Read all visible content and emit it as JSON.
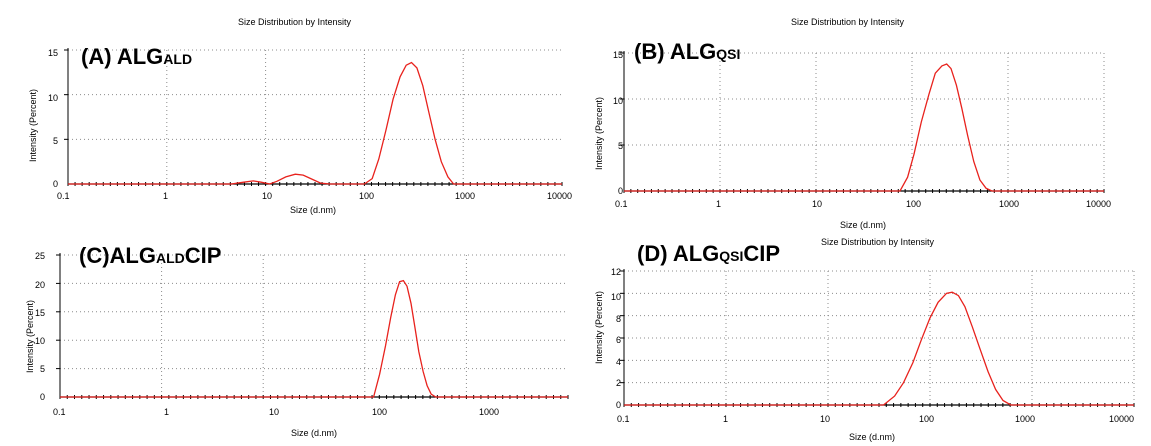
{
  "colors": {
    "curve": "#e8221d",
    "axis": "#000000",
    "grid": "#8c8c8c",
    "marker": "#000000"
  },
  "chart_data": [
    {
      "id": "A",
      "type": "line",
      "panel_label_main": "(A) ALG",
      "panel_label_sub": "ALD",
      "title": "Size Distribution by Intensity",
      "xlabel": "Size (d.nm)",
      "ylabel": "Intensity (Percent)",
      "xscale": "log",
      "xlim": [
        0.1,
        10000
      ],
      "ylim": [
        0,
        15
      ],
      "xticks": [
        "0.1",
        "1",
        "10",
        "100",
        "1000",
        "10000"
      ],
      "yticks": [
        "0",
        "5",
        "10",
        "15"
      ],
      "grid": true,
      "series": [
        {
          "x": [
            4.5,
            6.0,
            7.5,
            9.0,
            11.0,
            13.0,
            16.0,
            20.0,
            24.0,
            30.0,
            36.0,
            45.0,
            100.0,
            120.0,
            140.0,
            165.0,
            195.0,
            230.0,
            265.0,
            300.0,
            340.0,
            390.0,
            450.0,
            520.0,
            600.0,
            700.0,
            800.0
          ],
          "y": [
            0,
            0.2,
            0.35,
            0.2,
            0,
            0.3,
            0.8,
            1.1,
            1.0,
            0.5,
            0.1,
            0,
            0,
            0.6,
            2.8,
            6.0,
            9.5,
            12.0,
            13.3,
            13.6,
            13.0,
            11.0,
            8.0,
            5.0,
            2.5,
            0.8,
            0
          ]
        }
      ]
    },
    {
      "id": "B",
      "type": "line",
      "panel_label_main": "(B) ALG",
      "panel_label_sub": "QSI",
      "title": "Size Distribution by Intensity",
      "xlabel": "Size (d.nm)",
      "ylabel": "Intensity (Percent)",
      "xscale": "log",
      "xlim": [
        0.1,
        10000
      ],
      "ylim": [
        0,
        15
      ],
      "xticks": [
        "0.1",
        "1",
        "10",
        "100",
        "1000",
        "10000"
      ],
      "yticks": [
        "0",
        "5",
        "10",
        "15"
      ],
      "grid": true,
      "series": [
        {
          "x": [
            75,
            90,
            105,
            125,
            150,
            175,
            205,
            230,
            255,
            290,
            330,
            380,
            440,
            510,
            590,
            680
          ],
          "y": [
            0,
            1.5,
            4.0,
            7.5,
            10.5,
            12.8,
            13.6,
            13.8,
            13.3,
            11.5,
            9.0,
            6.0,
            3.2,
            1.2,
            0.3,
            0
          ]
        }
      ]
    },
    {
      "id": "C",
      "type": "line",
      "panel_label_main": "(C)ALG",
      "panel_label_sub": "ALD",
      "panel_label_tail": "CIP",
      "title": "",
      "xlabel": "Size (d.nm)",
      "ylabel": "Intensity (Percent)",
      "xscale": "log",
      "xlim": [
        0.1,
        10000
      ],
      "ylim": [
        0,
        25
      ],
      "xticks": [
        "0.1",
        "1",
        "10",
        "100",
        "1000"
      ],
      "yticks": [
        "0",
        "5",
        "10",
        "15",
        "20",
        "25"
      ],
      "grid": true,
      "series": [
        {
          "x": [
            122,
            140,
            160,
            180,
            200,
            220,
            240,
            260,
            285,
            310,
            340,
            375,
            410,
            450,
            500
          ],
          "y": [
            0,
            4.0,
            9.0,
            14.0,
            18.0,
            20.3,
            20.5,
            19.5,
            16.5,
            12.5,
            8.0,
            4.5,
            2.0,
            0.5,
            0
          ]
        }
      ]
    },
    {
      "id": "D",
      "type": "line",
      "panel_label_main": "(D) ALG",
      "panel_label_sub": "QSI",
      "panel_label_tail": "CIP",
      "title": "Size Distribution by Intensity",
      "xlabel": "Size (d.nm)",
      "ylabel": "Intensity (Percent)",
      "xscale": "log",
      "xlim": [
        0.1,
        10000
      ],
      "ylim": [
        0,
        12
      ],
      "xticks": [
        "0.1",
        "1",
        "10",
        "100",
        "1000",
        "10000"
      ],
      "yticks": [
        "0",
        "2",
        "4",
        "6",
        "8",
        "10",
        "12"
      ],
      "grid": true,
      "series": [
        {
          "x": [
            35,
            45,
            55,
            68,
            82,
            100,
            120,
            145,
            165,
            190,
            220,
            260,
            310,
            370,
            440,
            520,
            620
          ],
          "y": [
            0,
            0.8,
            2.0,
            3.8,
            5.8,
            7.8,
            9.2,
            10.0,
            10.1,
            9.8,
            8.8,
            7.0,
            5.0,
            3.0,
            1.4,
            0.4,
            0
          ]
        }
      ]
    }
  ]
}
